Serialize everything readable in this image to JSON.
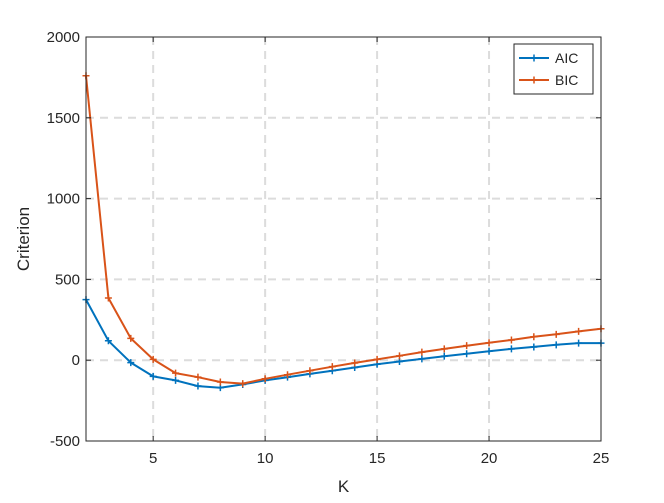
{
  "chart_data": {
    "type": "line",
    "title": "",
    "xlabel": "K",
    "ylabel": "Criterion",
    "xlim": [
      2,
      25
    ],
    "ylim": [
      -500,
      2000
    ],
    "xticks": [
      5,
      10,
      15,
      20,
      25
    ],
    "yticks": [
      -500,
      0,
      500,
      1000,
      1500,
      2000
    ],
    "grid": true,
    "legend_position": "top-right",
    "x": [
      2,
      3,
      4,
      5,
      6,
      7,
      8,
      9,
      10,
      11,
      12,
      13,
      14,
      15,
      16,
      17,
      18,
      19,
      20,
      21,
      22,
      23,
      24,
      25
    ],
    "series": [
      {
        "name": "AIC",
        "color": "#0072BD",
        "values": [
          375,
          120,
          -15,
          -100,
          -125,
          -160,
          -170,
          -150,
          -125,
          -105,
          -85,
          -65,
          -45,
          -25,
          -8,
          8,
          25,
          40,
          55,
          70,
          82,
          95,
          106,
          106
        ]
      },
      {
        "name": "BIC",
        "color": "#D95319",
        "values": [
          1760,
          385,
          135,
          5,
          -80,
          -105,
          -135,
          -145,
          -115,
          -90,
          -65,
          -40,
          -17,
          5,
          27,
          50,
          70,
          90,
          108,
          125,
          145,
          160,
          178,
          195
        ]
      }
    ]
  }
}
